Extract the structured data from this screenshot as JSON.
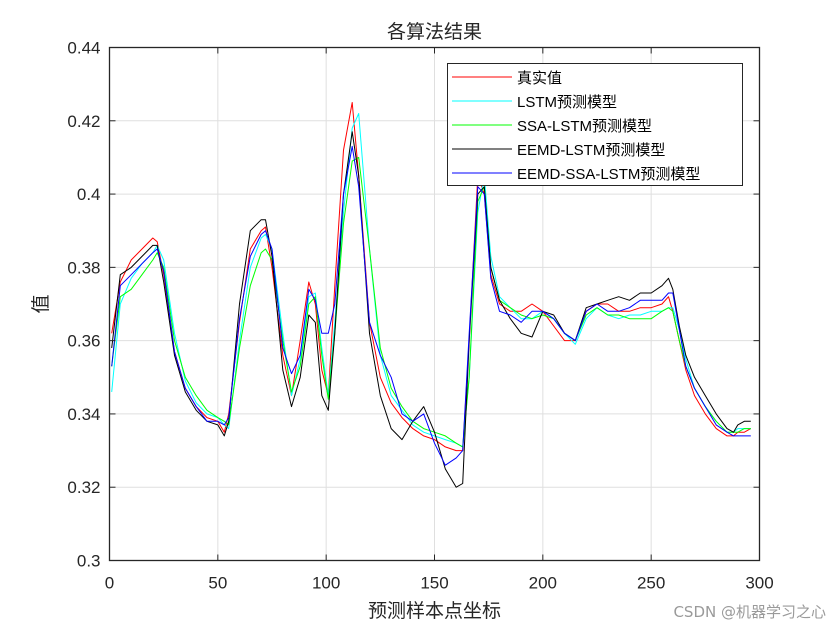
{
  "chart_data": {
    "type": "line",
    "title": "各算法结果",
    "xlabel": "预测样本点坐标",
    "ylabel": "值",
    "xlim": [
      0,
      300
    ],
    "ylim": [
      0.3,
      0.44
    ],
    "xticks": [
      0,
      50,
      100,
      150,
      200,
      250,
      300
    ],
    "xtick_labels": [
      "0",
      "50",
      "100",
      "150",
      "200",
      "250",
      "300"
    ],
    "yticks": [
      0.3,
      0.32,
      0.34,
      0.36,
      0.38,
      0.4,
      0.42,
      0.44
    ],
    "ytick_labels": [
      "0.3",
      "0.32",
      "0.34",
      "0.36",
      "0.38",
      "0.4",
      "0.42",
      "0.44"
    ],
    "grid": true,
    "legend_position": "upper right",
    "x": [
      1,
      5,
      10,
      15,
      20,
      22,
      25,
      30,
      35,
      40,
      45,
      50,
      53,
      55,
      60,
      65,
      70,
      72,
      75,
      80,
      84,
      88,
      92,
      95,
      98,
      101,
      104,
      108,
      112,
      115,
      120,
      125,
      130,
      135,
      140,
      145,
      150,
      155,
      160,
      163,
      166,
      170,
      173,
      176,
      180,
      185,
      190,
      195,
      200,
      205,
      210,
      215,
      220,
      225,
      230,
      235,
      240,
      245,
      250,
      255,
      258,
      260,
      263,
      266,
      270,
      275,
      280,
      285,
      288,
      290,
      293,
      296
    ],
    "series": [
      {
        "name": "真实值",
        "color": "#ff0000",
        "values": [
          0.362,
          0.376,
          0.382,
          0.385,
          0.388,
          0.387,
          0.378,
          0.357,
          0.347,
          0.342,
          0.339,
          0.338,
          0.335,
          0.34,
          0.365,
          0.385,
          0.39,
          0.391,
          0.38,
          0.356,
          0.345,
          0.36,
          0.376,
          0.37,
          0.352,
          0.345,
          0.375,
          0.412,
          0.425,
          0.405,
          0.365,
          0.35,
          0.343,
          0.339,
          0.336,
          0.334,
          0.333,
          0.331,
          0.33,
          0.33,
          0.36,
          0.405,
          0.4,
          0.378,
          0.37,
          0.368,
          0.368,
          0.37,
          0.368,
          0.364,
          0.36,
          0.36,
          0.368,
          0.37,
          0.37,
          0.368,
          0.368,
          0.369,
          0.369,
          0.37,
          0.372,
          0.368,
          0.36,
          0.352,
          0.345,
          0.34,
          0.336,
          0.334,
          0.334,
          0.335,
          0.335,
          0.336
        ]
      },
      {
        "name": "LSTM预测模型",
        "color": "#00ffff",
        "values": [
          0.346,
          0.37,
          0.377,
          0.381,
          0.384,
          0.386,
          0.382,
          0.362,
          0.349,
          0.343,
          0.34,
          0.339,
          0.337,
          0.336,
          0.36,
          0.38,
          0.388,
          0.389,
          0.385,
          0.362,
          0.345,
          0.355,
          0.372,
          0.373,
          0.358,
          0.345,
          0.365,
          0.395,
          0.418,
          0.422,
          0.385,
          0.356,
          0.345,
          0.341,
          0.337,
          0.335,
          0.334,
          0.333,
          0.332,
          0.331,
          0.35,
          0.395,
          0.405,
          0.383,
          0.372,
          0.369,
          0.366,
          0.366,
          0.368,
          0.366,
          0.362,
          0.359,
          0.366,
          0.369,
          0.367,
          0.366,
          0.367,
          0.367,
          0.368,
          0.368,
          0.369,
          0.369,
          0.363,
          0.355,
          0.347,
          0.342,
          0.338,
          0.335,
          0.335,
          0.336,
          0.336,
          0.336
        ]
      },
      {
        "name": "SSA-LSTM预测模型",
        "color": "#00ff00",
        "values": [
          0.353,
          0.372,
          0.374,
          0.378,
          0.382,
          0.384,
          0.38,
          0.36,
          0.35,
          0.345,
          0.341,
          0.339,
          0.338,
          0.337,
          0.358,
          0.375,
          0.384,
          0.385,
          0.382,
          0.36,
          0.346,
          0.353,
          0.37,
          0.372,
          0.356,
          0.344,
          0.362,
          0.392,
          0.409,
          0.41,
          0.385,
          0.358,
          0.347,
          0.342,
          0.338,
          0.336,
          0.335,
          0.334,
          0.332,
          0.331,
          0.35,
          0.398,
          0.402,
          0.38,
          0.371,
          0.369,
          0.367,
          0.366,
          0.367,
          0.366,
          0.362,
          0.36,
          0.367,
          0.369,
          0.367,
          0.367,
          0.366,
          0.366,
          0.366,
          0.368,
          0.369,
          0.368,
          0.36,
          0.353,
          0.347,
          0.342,
          0.338,
          0.335,
          0.335,
          0.335,
          0.336,
          0.336
        ]
      },
      {
        "name": "EEMD-LSTM预测模型",
        "color": "#000000",
        "values": [
          0.358,
          0.378,
          0.38,
          0.383,
          0.386,
          0.386,
          0.376,
          0.356,
          0.346,
          0.341,
          0.338,
          0.337,
          0.334,
          0.338,
          0.37,
          0.39,
          0.393,
          0.393,
          0.383,
          0.352,
          0.342,
          0.35,
          0.367,
          0.365,
          0.345,
          0.341,
          0.362,
          0.4,
          0.417,
          0.405,
          0.362,
          0.345,
          0.336,
          0.333,
          0.338,
          0.342,
          0.335,
          0.325,
          0.32,
          0.321,
          0.36,
          0.4,
          0.402,
          0.38,
          0.371,
          0.366,
          0.362,
          0.361,
          0.368,
          0.367,
          0.362,
          0.36,
          0.369,
          0.37,
          0.371,
          0.372,
          0.371,
          0.373,
          0.373,
          0.375,
          0.377,
          0.374,
          0.364,
          0.356,
          0.35,
          0.345,
          0.34,
          0.336,
          0.335,
          0.337,
          0.338,
          0.338
        ]
      },
      {
        "name": "EEMD-SSA-LSTM预测模型",
        "color": "#0000ff",
        "values": [
          0.353,
          0.375,
          0.378,
          0.381,
          0.384,
          0.385,
          0.379,
          0.357,
          0.347,
          0.342,
          0.338,
          0.338,
          0.337,
          0.339,
          0.366,
          0.383,
          0.389,
          0.39,
          0.385,
          0.358,
          0.351,
          0.356,
          0.374,
          0.371,
          0.362,
          0.362,
          0.37,
          0.4,
          0.413,
          0.402,
          0.365,
          0.356,
          0.35,
          0.34,
          0.338,
          0.34,
          0.332,
          0.326,
          0.328,
          0.33,
          0.362,
          0.402,
          0.4,
          0.377,
          0.368,
          0.367,
          0.365,
          0.368,
          0.368,
          0.366,
          0.362,
          0.36,
          0.368,
          0.37,
          0.368,
          0.368,
          0.369,
          0.371,
          0.371,
          0.371,
          0.373,
          0.373,
          0.363,
          0.353,
          0.347,
          0.342,
          0.337,
          0.335,
          0.334,
          0.334,
          0.334,
          0.334
        ]
      }
    ]
  },
  "legend": {
    "items": [
      {
        "label": "真实值",
        "color": "#ff0000"
      },
      {
        "label": "LSTM预测模型",
        "color": "#00ffff"
      },
      {
        "label": "SSA-LSTM预测模型",
        "color": "#00ff00"
      },
      {
        "label": "EEMD-LSTM预测模型",
        "color": "#000000"
      },
      {
        "label": "EEMD-SSA-LSTM预测模型",
        "color": "#0000ff"
      }
    ]
  },
  "watermark": "CSDN @机器学习之心"
}
